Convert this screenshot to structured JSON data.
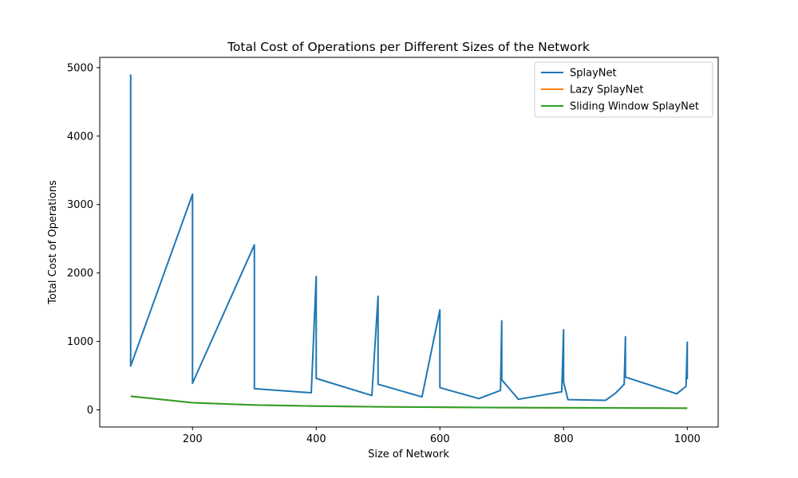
{
  "chart_data": {
    "type": "line",
    "title": "Total Cost of Operations per Different Sizes of the Network",
    "xlabel": "Size of Network",
    "ylabel": "Total Cost of Operations",
    "xlim": [
      50,
      1050
    ],
    "ylim": [
      -250,
      5150
    ],
    "xticks": [
      200,
      400,
      600,
      800,
      1000
    ],
    "yticks": [
      0,
      1000,
      2000,
      3000,
      4000,
      5000
    ],
    "grid": false,
    "legend_position": "top-right",
    "series": [
      {
        "name": "SplayNet",
        "color": "#1f77b4",
        "x": [
          100,
          100,
          200,
          200,
          300,
          300,
          392,
          400,
          400,
          490,
          500,
          500,
          571,
          600,
          600,
          663,
          698,
          700,
          700,
          727,
          797,
          800,
          800,
          807,
          868,
          884,
          898,
          900,
          900,
          983,
          998,
          1000,
          1000
        ],
        "y": [
          4900,
          640,
          3150,
          390,
          2410,
          310,
          250,
          1950,
          460,
          210,
          1660,
          375,
          190,
          1460,
          325,
          165,
          285,
          1300,
          440,
          155,
          265,
          1170,
          405,
          150,
          140,
          245,
          375,
          1070,
          480,
          235,
          345,
          990,
          450
        ]
      },
      {
        "name": "Lazy SplayNet",
        "color": "#ff7f0e",
        "x": [
          100,
          200,
          300,
          400,
          500,
          600,
          700,
          800,
          900,
          1000
        ],
        "y": [
          200,
          105,
          72,
          55,
          45,
          39,
          34,
          31,
          28,
          25
        ]
      },
      {
        "name": "Sliding Window SplayNet",
        "color": "#2ca02c",
        "x": [
          100,
          200,
          300,
          400,
          500,
          600,
          700,
          800,
          900,
          1000
        ],
        "y": [
          200,
          105,
          72,
          55,
          45,
          39,
          34,
          31,
          28,
          25
        ]
      }
    ]
  }
}
